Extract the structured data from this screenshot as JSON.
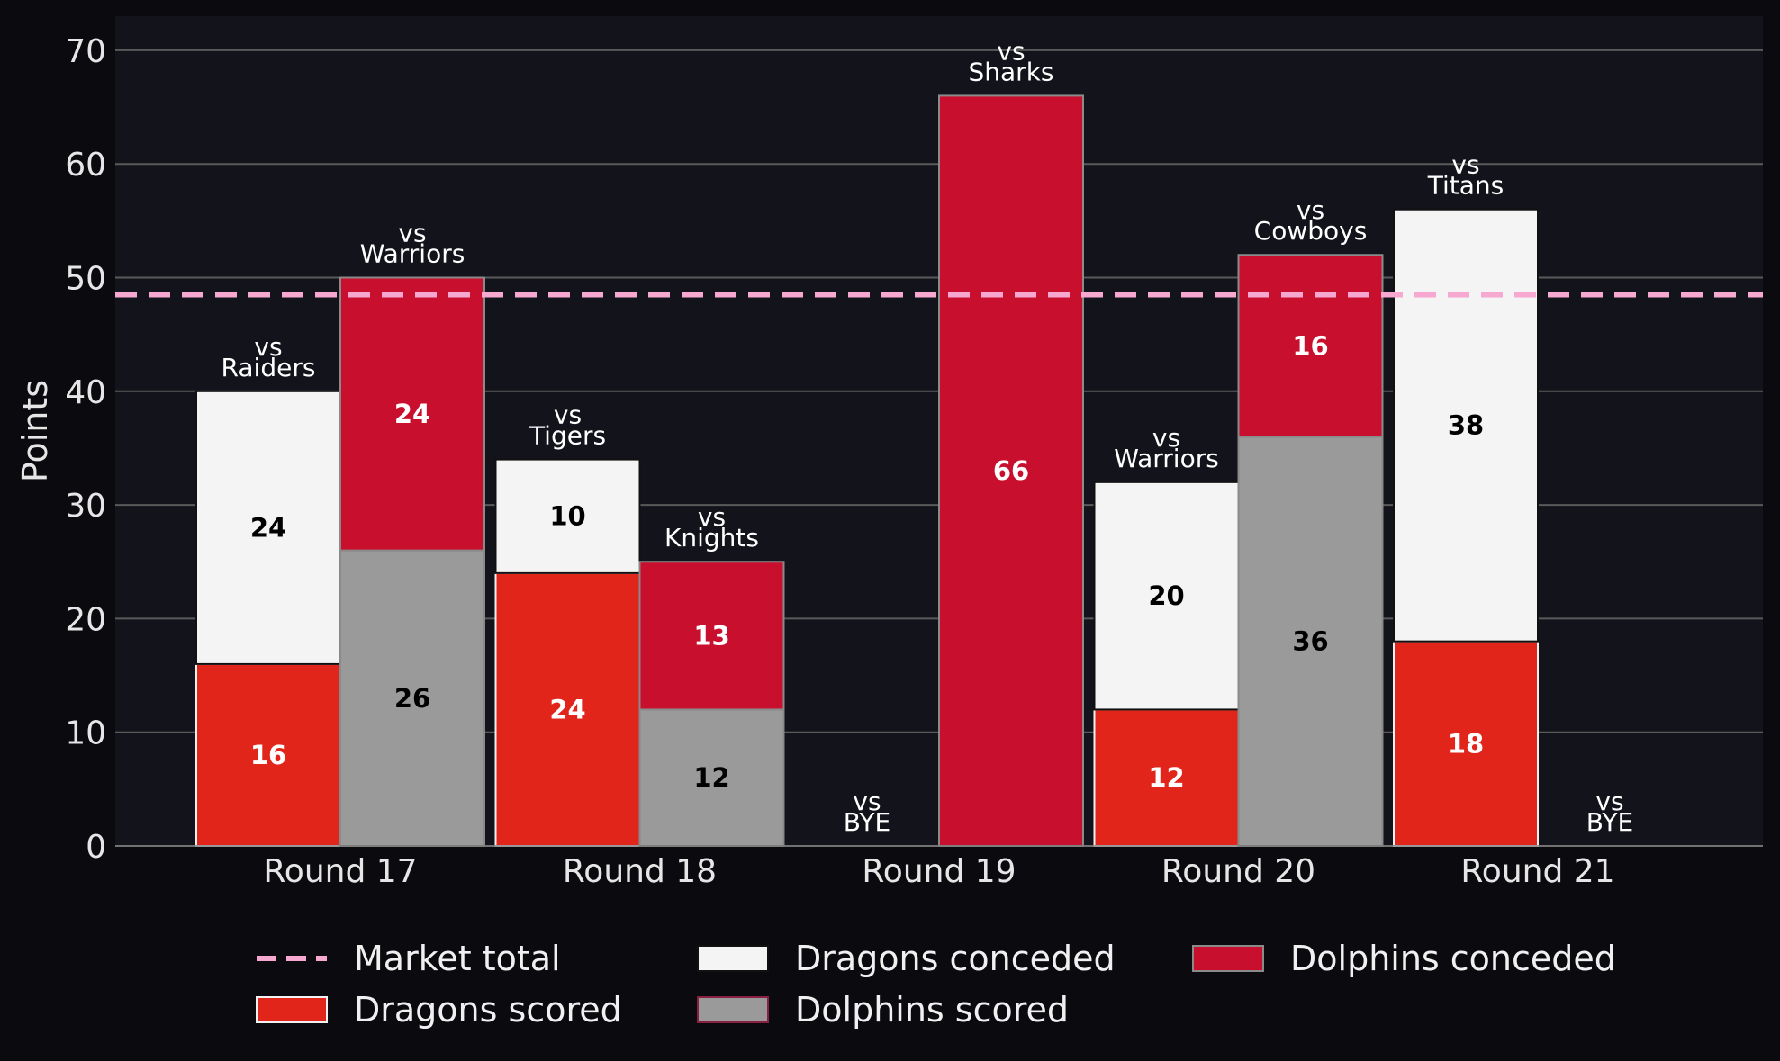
{
  "chart_data": {
    "type": "bar",
    "ylabel": "Points",
    "ylim": [
      0,
      73
    ],
    "yticks": [
      0,
      10,
      20,
      30,
      40,
      50,
      60,
      70
    ],
    "grid": true,
    "legend_position": "bottom",
    "market_total": 48.5,
    "market_total_label": "Market total",
    "vs_prefix": "vs",
    "categories": [
      "Round 17",
      "Round 18",
      "Round 19",
      "Round 20",
      "Round 21"
    ],
    "dragons": {
      "opponents": [
        "Raiders",
        "Tigers",
        "BYE",
        "Warriors",
        "Titans"
      ],
      "scored": [
        16,
        24,
        0,
        12,
        18
      ],
      "conceded": [
        24,
        10,
        0,
        20,
        38
      ]
    },
    "dolphins": {
      "opponents": [
        "Warriors",
        "Knights",
        "Sharks",
        "Cowboys",
        "BYE"
      ],
      "scored": [
        26,
        12,
        0,
        36,
        0
      ],
      "conceded": [
        24,
        13,
        66,
        16,
        0
      ]
    },
    "series": [
      {
        "name": "Dragons scored",
        "color": "#e1251b"
      },
      {
        "name": "Dragons conceded",
        "color": "#f4f4f4"
      },
      {
        "name": "Dolphins scored",
        "color": "#9a9a9a"
      },
      {
        "name": "Dolphins conceded",
        "color": "#c8102e"
      }
    ],
    "colors": {
      "background": "#0b0b0f",
      "plot_background": "#12131b",
      "grid": "#5a5a5a",
      "market_line": "#f7a8d0"
    }
  }
}
